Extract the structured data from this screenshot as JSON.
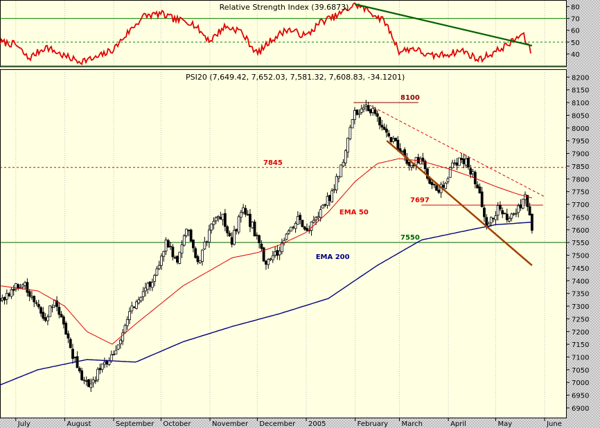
{
  "chart_data": [
    {
      "type": "line",
      "panel": "rsi",
      "title": "Relative Strength Index (39.6873)",
      "ylim": [
        30,
        85
      ],
      "y_ticks": [
        40,
        50,
        60,
        70,
        80
      ],
      "reference_lines": [
        70,
        50,
        30
      ],
      "grid": true,
      "series": [
        {
          "color": "#e00000",
          "x": [
            "2004-06-21",
            "2004-07-01",
            "2004-07-09",
            "2004-07-20",
            "2004-08-01",
            "2004-08-10",
            "2004-08-20",
            "2004-09-01",
            "2004-09-10",
            "2004-09-20",
            "2004-10-01",
            "2004-10-10",
            "2004-10-20",
            "2004-11-01",
            "2004-11-10",
            "2004-11-20",
            "2004-12-01",
            "2004-12-10",
            "2004-12-20",
            "2005-01-01",
            "2005-01-10",
            "2005-01-20",
            "2005-02-01",
            "2005-02-10",
            "2005-02-20",
            "2005-03-01",
            "2005-03-10",
            "2005-03-20",
            "2005-04-01",
            "2005-04-10",
            "2005-04-20",
            "2005-05-01",
            "2005-05-10",
            "2005-05-18",
            "2005-05-24"
          ],
          "values": [
            50,
            48,
            36,
            46,
            38,
            34,
            36,
            44,
            58,
            72,
            74,
            69,
            67,
            51,
            63,
            60,
            40,
            52,
            61,
            55,
            67,
            72,
            82,
            76,
            67,
            42,
            45,
            38,
            40,
            43,
            35,
            42,
            49,
            57,
            40
          ]
        },
        {
          "color": "#006000",
          "x": [
            "2005-02-01",
            "2005-05-24"
          ],
          "values": [
            82,
            47
          ]
        }
      ]
    },
    {
      "type": "candlestick",
      "panel": "price",
      "title": "PSI20 (7,649.42, 7,652.03, 7,581.32, 7,608.83, -34.1201)",
      "x_tick_labels": [
        "July",
        "August",
        "September",
        "October",
        "November",
        "December",
        "2005",
        "February",
        "March",
        "April",
        "May",
        "June"
      ],
      "x_tick_dates": [
        "2004-07-01",
        "2004-08-01",
        "2004-09-01",
        "2004-10-01",
        "2004-11-01",
        "2004-12-01",
        "2005-01-01",
        "2005-02-01",
        "2005-03-01",
        "2005-04-01",
        "2005-05-01",
        "2005-06-01"
      ],
      "x_partial_label": "June",
      "ylim": [
        6870,
        8220
      ],
      "y_ticks": [
        6900,
        6950,
        7000,
        7050,
        7100,
        7150,
        7200,
        7250,
        7300,
        7350,
        7400,
        7450,
        7500,
        7550,
        7600,
        7650,
        7700,
        7750,
        7800,
        7850,
        7900,
        7950,
        8000,
        8050,
        8100,
        8150,
        8200
      ],
      "grid": true,
      "close_path": {
        "x": [
          "2004-06-21",
          "2004-06-28",
          "2004-07-05",
          "2004-07-12",
          "2004-07-19",
          "2004-07-26",
          "2004-08-02",
          "2004-08-09",
          "2004-08-16",
          "2004-08-23",
          "2004-08-30",
          "2004-09-06",
          "2004-09-13",
          "2004-09-20",
          "2004-09-27",
          "2004-10-04",
          "2004-10-11",
          "2004-10-18",
          "2004-10-25",
          "2004-11-01",
          "2004-11-08",
          "2004-11-15",
          "2004-11-22",
          "2004-11-29",
          "2004-12-06",
          "2004-12-13",
          "2004-12-20",
          "2004-12-27",
          "2005-01-03",
          "2005-01-10",
          "2005-01-17",
          "2005-01-24",
          "2005-01-31",
          "2005-02-07",
          "2005-02-14",
          "2005-02-21",
          "2005-02-28",
          "2005-03-07",
          "2005-03-14",
          "2005-03-21",
          "2005-03-28",
          "2005-04-04",
          "2005-04-11",
          "2005-04-18",
          "2005-04-25",
          "2005-05-02",
          "2005-05-09",
          "2005-05-16",
          "2005-05-20",
          "2005-05-24"
        ],
        "values": [
          7330,
          7360,
          7390,
          7340,
          7250,
          7310,
          7200,
          7050,
          6990,
          7040,
          7090,
          7180,
          7300,
          7350,
          7420,
          7550,
          7480,
          7600,
          7450,
          7620,
          7660,
          7560,
          7680,
          7600,
          7480,
          7500,
          7580,
          7640,
          7600,
          7680,
          7740,
          7860,
          8070,
          8080,
          8060,
          7980,
          7930,
          7840,
          7880,
          7780,
          7760,
          7850,
          7880,
          7800,
          7630,
          7680,
          7630,
          7680,
          7740,
          7609
        ]
      },
      "overlays": [
        {
          "name": "EMA 50",
          "color": "#e00000",
          "x": [
            "2004-06-21",
            "2004-07-15",
            "2004-08-01",
            "2004-08-15",
            "2004-08-31",
            "2004-09-15",
            "2004-10-01",
            "2004-10-15",
            "2004-11-01",
            "2004-11-15",
            "2004-12-01",
            "2004-12-15",
            "2005-01-01",
            "2005-01-15",
            "2005-02-01",
            "2005-02-15",
            "2005-03-01",
            "2005-03-15",
            "2005-04-01",
            "2005-04-15",
            "2005-05-01",
            "2005-05-15",
            "2005-05-24"
          ],
          "values": [
            7380,
            7360,
            7300,
            7200,
            7150,
            7230,
            7310,
            7380,
            7440,
            7490,
            7510,
            7540,
            7590,
            7670,
            7790,
            7860,
            7880,
            7870,
            7840,
            7810,
            7770,
            7740,
            7725
          ]
        },
        {
          "name": "EMA 200",
          "color": "#000080",
          "x": [
            "2004-06-21",
            "2004-07-15",
            "2004-08-15",
            "2004-09-15",
            "2004-10-15",
            "2004-11-15",
            "2004-12-15",
            "2005-01-15",
            "2005-02-15",
            "2005-03-15",
            "2005-04-15",
            "2005-05-01",
            "2005-05-24"
          ],
          "values": [
            6990,
            7050,
            7090,
            7080,
            7160,
            7220,
            7270,
            7330,
            7460,
            7560,
            7600,
            7620,
            7630
          ]
        }
      ],
      "levels": [
        {
          "label": "8100",
          "value": 8100,
          "color": "#8b0000",
          "from": "2005-01-31",
          "to": "2005-03-13",
          "style": "solid"
        },
        {
          "label": "7845",
          "value": 7845,
          "color": "#e00000",
          "from": "2004-06-21",
          "to": "2005-06-15",
          "style": "dashed"
        },
        {
          "label": "7697",
          "value": 7697,
          "color": "#e00000",
          "from": "2005-03-15",
          "to": "2005-05-31",
          "style": "solid"
        },
        {
          "label": "7550",
          "value": 7550,
          "color": "#006000",
          "from": "2004-06-21",
          "to": "2005-06-15",
          "style": "solid"
        }
      ],
      "trendlines": [
        {
          "color": "#e00000",
          "style": "dashed",
          "from": [
            "2005-02-10",
            8090
          ],
          "to": [
            "2005-06-01",
            7730
          ]
        },
        {
          "color": "#a04000",
          "style": "solid",
          "from": [
            "2005-02-21",
            7950
          ],
          "to": [
            "2005-05-24",
            7460
          ]
        }
      ],
      "annotations": [
        {
          "text": "EMA 50",
          "color": "#e00000",
          "x": "2005-01-22",
          "y": 7660
        },
        {
          "text": "EMA 200",
          "color": "#000080",
          "x": "2005-01-07",
          "y": 7485
        }
      ]
    }
  ]
}
